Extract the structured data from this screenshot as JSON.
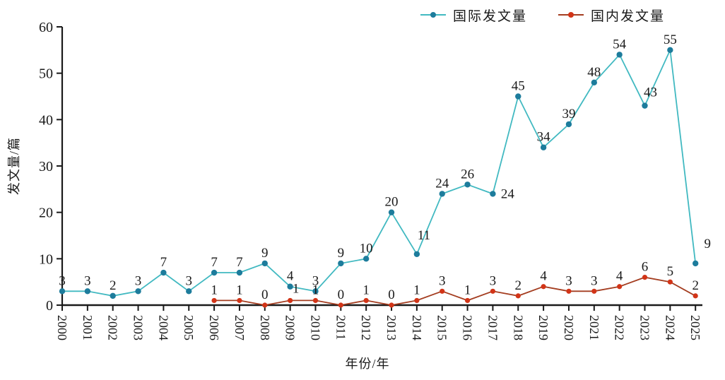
{
  "chart_data": {
    "type": "line",
    "title": "",
    "xlabel": "年份/年",
    "ylabel": "发文量/篇",
    "x": [
      2000,
      2001,
      2002,
      2003,
      2004,
      2005,
      2006,
      2007,
      2008,
      2009,
      2010,
      2011,
      2012,
      2013,
      2014,
      2015,
      2016,
      2017,
      2018,
      2019,
      2020,
      2021,
      2022,
      2023,
      2024,
      2025
    ],
    "series": [
      {
        "name": "国际发文量",
        "line_color": "#41b9c1",
        "marker_color": "#1d7c9c",
        "values": [
          3,
          3,
          2,
          3,
          7,
          3,
          7,
          7,
          9,
          4,
          3,
          9,
          10,
          20,
          11,
          24,
          26,
          24,
          45,
          34,
          39,
          48,
          54,
          43,
          55,
          9
        ]
      },
      {
        "name": "国内发文量",
        "line_color": "#a43d20",
        "marker_color": "#d23417",
        "values": [
          null,
          null,
          null,
          null,
          null,
          null,
          1,
          1,
          0,
          1,
          1,
          0,
          1,
          0,
          1,
          3,
          1,
          3,
          2,
          4,
          3,
          3,
          4,
          6,
          5,
          2
        ]
      }
    ],
    "ylim": [
      0,
      60
    ],
    "yticks": [
      0,
      10,
      20,
      30,
      40,
      50,
      60
    ],
    "grid": false,
    "point_labels": true,
    "legend_position": "top",
    "axis_color": "#1a1a1a",
    "text_color": "#1a1a1a",
    "background": "#ffffff"
  }
}
